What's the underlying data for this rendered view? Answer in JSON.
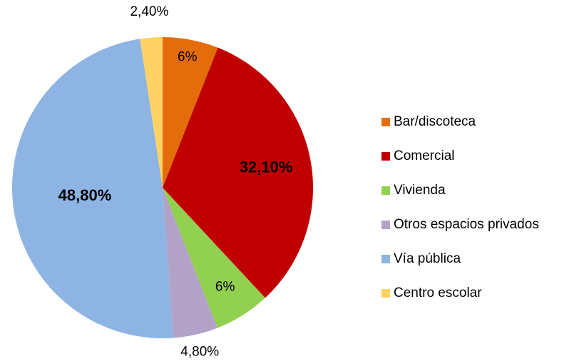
{
  "chart_data": {
    "type": "pie",
    "categories": [
      "Bar/discoteca",
      "Comercial",
      "Vivienda",
      "Otros espacios privados",
      "Vía pública",
      "Centro escolar"
    ],
    "values": [
      6,
      32.1,
      6,
      4.8,
      48.8,
      2.4
    ],
    "value_labels": [
      "6%",
      "32,10%",
      "6%",
      "4,80%",
      "48,80%",
      "2,40%"
    ],
    "colors": [
      "#e46c0a",
      "#c00000",
      "#92d050",
      "#b3a2c7",
      "#8eb4e3",
      "#ffd266"
    ],
    "legend": "right"
  }
}
